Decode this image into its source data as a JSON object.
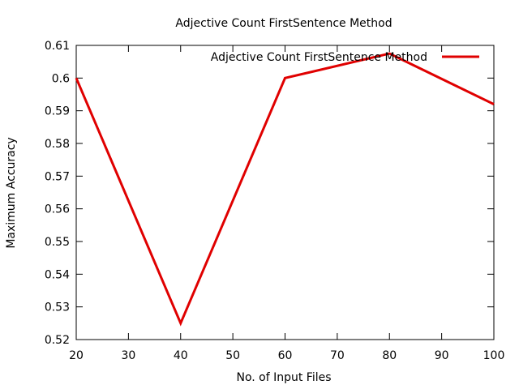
{
  "chart_data": {
    "type": "line",
    "title": "Adjective Count FirstSentence Method",
    "xlabel": "No. of Input Files",
    "ylabel": "Maximum Accuracy",
    "xlim": [
      20,
      100
    ],
    "ylim": [
      0.52,
      0.61
    ],
    "xticks": [
      20,
      30,
      40,
      50,
      60,
      70,
      80,
      90,
      100
    ],
    "yticks": [
      0.52,
      0.53,
      0.54,
      0.55,
      0.56,
      0.57,
      0.58,
      0.59,
      0.6,
      0.61
    ],
    "grid": false,
    "legend_position": "top-right",
    "series": [
      {
        "name": "Adjective Count FirstSentence Method",
        "color": "#e00000",
        "x": [
          20,
          40,
          60,
          80,
          100
        ],
        "y": [
          0.6,
          0.525,
          0.6,
          0.6075,
          0.592
        ]
      }
    ]
  }
}
